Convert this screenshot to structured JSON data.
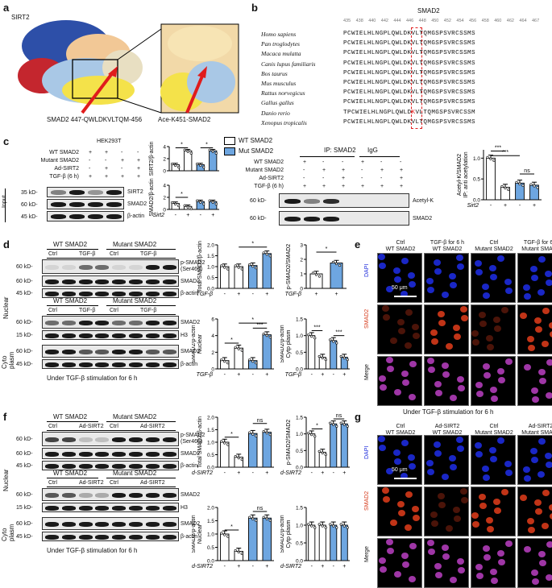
{
  "panels": {
    "a": "a",
    "b": "b",
    "c": "c",
    "d": "d",
    "e": "e",
    "f": "f",
    "g": "g"
  },
  "a": {
    "protein": "SIRT2",
    "label1": "SMAD2 447-QWLDKVLTQM-456",
    "label2": "Ace-K451-SMAD2"
  },
  "b": {
    "title": "SMAD2",
    "ticks": [
      "435",
      "438",
      "440",
      "442",
      "444",
      "446",
      "448",
      "450",
      "452",
      "454",
      "456",
      "458",
      "460",
      "462",
      "464",
      "467"
    ],
    "species": [
      "Homo sapiens",
      "Pan troglodytes",
      "Macaca mulatta",
      "Canis lupus familiaris",
      "Bos taurus",
      "Mus musculus",
      "Rattus norvegicus",
      "Gallus gallus",
      "Danio rerio",
      "Xenopus tropicalis"
    ],
    "seqs": [
      "PCWIELHLNGPLQWLDKVLTQMGSPSVRCSSMS",
      "PCWIELHLNGPLQWLDKVLTQMGSPSVRCSSMS",
      "PCWIELHLNGPLQWLDKVLTQMGSPSVRCSSMS",
      "PCWIELHLNGPLQWLDKVLTQMGSPSVRCSSMS",
      "PCWIELHLNGPLQWLDKVLTQMGSPSVRCSSMS",
      "PCWIELHLNGPLQWLDKVLTQMGSPSVRCSSMS",
      "PCWIELHLNGPLQWLDKVLTQMGSPSVRCSSMS",
      "PCWIELHLNGPLQWLDKVLTQMGSPSVRCSSMS",
      "TPCWIELHLNGPLQWLDKVLTQMGSPSVRCSSM",
      "PCWIELHLNGPLQWLDKVLTQMGSPSVRCSSMS"
    ]
  },
  "c": {
    "cell": "HEK293T",
    "rows": [
      "WT SMAD2",
      "Mutant SMAD2",
      "Ad-SIRT2",
      "TGF-β (6 h)"
    ],
    "signs": [
      [
        "+",
        "+",
        "-",
        "-"
      ],
      [
        "-",
        "-",
        "+",
        "+"
      ],
      [
        "-",
        "+",
        "-",
        "+"
      ],
      [
        "+",
        "+",
        "+",
        "+"
      ]
    ],
    "input": "Input",
    "mw": [
      "35 kD-",
      "60 kD-",
      "45 kD-"
    ],
    "blots": [
      "SIRT2",
      "SMAD2",
      "β-actin"
    ],
    "legend": [
      "WT SMAD2",
      "Mut SMAD2"
    ],
    "ylab1": "SIRT2/β-actin",
    "ylab2": "SMAD2/β-actin",
    "sirt2": "Sirt2",
    "ip": "IP: SMAD2",
    "igg": "IgG",
    "ip_rows": [
      "WT SMAD2",
      "Mutant SMAD2",
      "Ad-SIRT2",
      "TGF-β (6 h)"
    ],
    "ip_mw": [
      "60 kD-",
      "60 kD-"
    ],
    "ip_blots": [
      "Acetyl-K",
      "SMAD2"
    ],
    "ylab3": "IP: anti acetylation",
    "ylab3b": "Acetyl-K/SMAD2",
    "sig": [
      "***",
      "***",
      "ns",
      "*",
      "*",
      "*"
    ],
    "ticks": [
      "0",
      "2",
      "4",
      "0",
      "2",
      "4",
      "0.0",
      "0.5",
      "1.0"
    ]
  },
  "d": {
    "hdr": [
      "WT SMAD2",
      "Mutant SMAD2"
    ],
    "cols": [
      "Ctrl",
      "TGF-β",
      "Ctrl",
      "TGF-β"
    ],
    "mw": [
      "60 kD-",
      "60 kD-",
      "45 kD-",
      "60 kD-",
      "15 kD-",
      "60 kD-",
      "45 kD-"
    ],
    "blots": [
      "p-SMAD2",
      "(Ser465)",
      "SMAD2",
      "β-actin",
      "SMAD2",
      "H3",
      "SMAD2",
      "β-actin"
    ],
    "fr": [
      "Nuclear",
      "Cyto",
      "plasm"
    ],
    "foot": "Under TGF-β stimulation for 6 h",
    "yl": [
      "Total SMAD2/β-actin",
      "p-SMAD2/SMAD2",
      "Nuclear",
      "SMAD2/β-actin",
      "Cytp plasm",
      "SMAD2/β-actin"
    ],
    "xl": "TGF-β",
    "sig": [
      "*",
      "*",
      "*",
      "*",
      "***",
      "***",
      "***"
    ],
    "ticks": [
      "0.0",
      "0.5",
      "1.0",
      "1.5",
      "2.0",
      "0",
      "1",
      "2",
      "3",
      "0",
      "2",
      "4",
      "6",
      "0.0",
      "0.5",
      "1.0",
      "1.5"
    ]
  },
  "e": {
    "cols": [
      "Ctrl",
      "TGF-β for 6 h",
      "Ctrl",
      "TGF-β for 6 h"
    ],
    "sub": [
      "WT SMAD2",
      "WT SMAD2",
      "Mutant SMAD2",
      "Mutant SMAD2"
    ],
    "rows": [
      "DAPI",
      "SMAD2",
      "Merge"
    ],
    "scale": "50 μm"
  },
  "f": {
    "hdr": [
      "WT SMAD2",
      "Mutant SMAD2"
    ],
    "cols": [
      "Ctrl",
      "Ad-SIRT2",
      "Ctrl",
      "Ad-SIRT2"
    ],
    "mw": [
      "60 kD-",
      "60 kD-",
      "45 kD-",
      "60 kD-",
      "15 kD-",
      "60 kD-",
      "45 kD-"
    ],
    "blots": [
      "p-SMAD2",
      "(Ser465)",
      "SMAD2",
      "β-actin",
      "SMAD2",
      "H3",
      "SMAD2",
      "β-actin"
    ],
    "fr": [
      "Nuclear",
      "Cyto",
      "plasm"
    ],
    "foot": "Under TGF-β stimulation for 6 h",
    "yl": [
      "Total SMAD2/β-actin",
      "p-SMAD2/SMAD2",
      "Nuclear",
      "SMAD2/β-actin",
      "Cytp plasm",
      "SMAD2/β-actin"
    ],
    "xl": "Ad-SIRT2",
    "sig": [
      "*",
      "ns",
      "*",
      "ns",
      "*",
      "ns"
    ],
    "ticks": [
      "0.0",
      "0.5",
      "1.0",
      "1.5",
      "2.0",
      "0.0",
      "0.5",
      "1.0",
      "1.5",
      "0.0",
      "0.5",
      "1.0",
      "1.5",
      "2.0",
      "0.0",
      "0.5",
      "1.0",
      "1.5"
    ]
  },
  "g": {
    "top": "Under TGF-β stimulation for 6 h",
    "cols": [
      "Ctrl",
      "Ad-SIRT2",
      "Ctrl",
      "Ad-SIRT2"
    ],
    "sub": [
      "WT SMAD2",
      "WT SMAD2",
      "Mutant SMAD2",
      "Mutant SMAD2"
    ],
    "rows": [
      "DAPI",
      "SMAD2",
      "Merge"
    ],
    "scale": "50 μm"
  },
  "colors": {
    "wt": "#ffffff",
    "mut": "#6ea6e0",
    "dapi": "#1d2bdc",
    "smad": "#d63a1a",
    "merge": "#b03cb8"
  },
  "chart_data": [
    {
      "type": "bar",
      "title": "",
      "ylabel": "SIRT2/β-actin",
      "categories": [
        "WT -",
        "WT +",
        "Mut -",
        "Mut +"
      ],
      "values": [
        1.0,
        3.3,
        1.0,
        3.3
      ],
      "ylim": [
        0,
        4
      ]
    },
    {
      "type": "bar",
      "ylabel": "SMAD2/β-actin",
      "categories": [
        "WT -",
        "WT +",
        "Mut -",
        "Mut +"
      ],
      "values": [
        1.0,
        0.5,
        1.3,
        1.3
      ],
      "ylim": [
        0,
        4
      ]
    },
    {
      "type": "bar",
      "ylabel": "Acetyl-K/SMAD2",
      "categories": [
        "-",
        "+",
        "-",
        "+"
      ],
      "values": [
        1.0,
        0.3,
        0.4,
        0.35
      ],
      "ylim": [
        0,
        1.2
      ]
    },
    {
      "type": "bar",
      "ylabel": "Total SMAD2/β-actin",
      "categories": [
        "-",
        "+",
        "-",
        "+"
      ],
      "values": [
        1.0,
        1.0,
        1.05,
        1.6
      ],
      "ylim": [
        0,
        2
      ]
    },
    {
      "type": "bar",
      "ylabel": "p-SMAD2/SMAD2",
      "categories": [
        "+",
        "+"
      ],
      "values": [
        1.0,
        1.75
      ],
      "ylim": [
        0,
        3
      ]
    },
    {
      "type": "bar",
      "ylabel": "Nuclear SMAD2/β-actin",
      "categories": [
        "-",
        "+",
        "-",
        "+"
      ],
      "values": [
        1.0,
        2.5,
        1.0,
        4.1
      ],
      "ylim": [
        0,
        6
      ]
    },
    {
      "type": "bar",
      "ylabel": "Cytp plasm SMAD2/β-actin",
      "categories": [
        "-",
        "+",
        "-",
        "+"
      ],
      "values": [
        1.0,
        0.35,
        0.85,
        0.35
      ],
      "ylim": [
        0,
        1.5
      ]
    },
    {
      "type": "bar",
      "ylabel": "Total SMAD2/β-actin",
      "categories": [
        "-",
        "+",
        "-",
        "+"
      ],
      "values": [
        1.0,
        0.4,
        1.35,
        1.4
      ],
      "ylim": [
        0,
        2
      ]
    },
    {
      "type": "bar",
      "ylabel": "p-SMAD2/SMAD2",
      "categories": [
        "-",
        "+",
        "-",
        "+"
      ],
      "values": [
        1.0,
        0.45,
        1.3,
        1.3
      ],
      "ylim": [
        0,
        1.5
      ]
    },
    {
      "type": "bar",
      "ylabel": "Nuclear SMAD2/β-actin",
      "categories": [
        "-",
        "+",
        "-",
        "+"
      ],
      "values": [
        1.0,
        0.35,
        1.6,
        1.6
      ],
      "ylim": [
        0,
        2
      ]
    },
    {
      "type": "bar",
      "ylabel": "Cytp plasm SMAD2/β-actin",
      "categories": [
        "-",
        "+",
        "-",
        "+"
      ],
      "values": [
        1.0,
        1.0,
        1.0,
        1.0
      ],
      "ylim": [
        0,
        1.5
      ]
    }
  ]
}
